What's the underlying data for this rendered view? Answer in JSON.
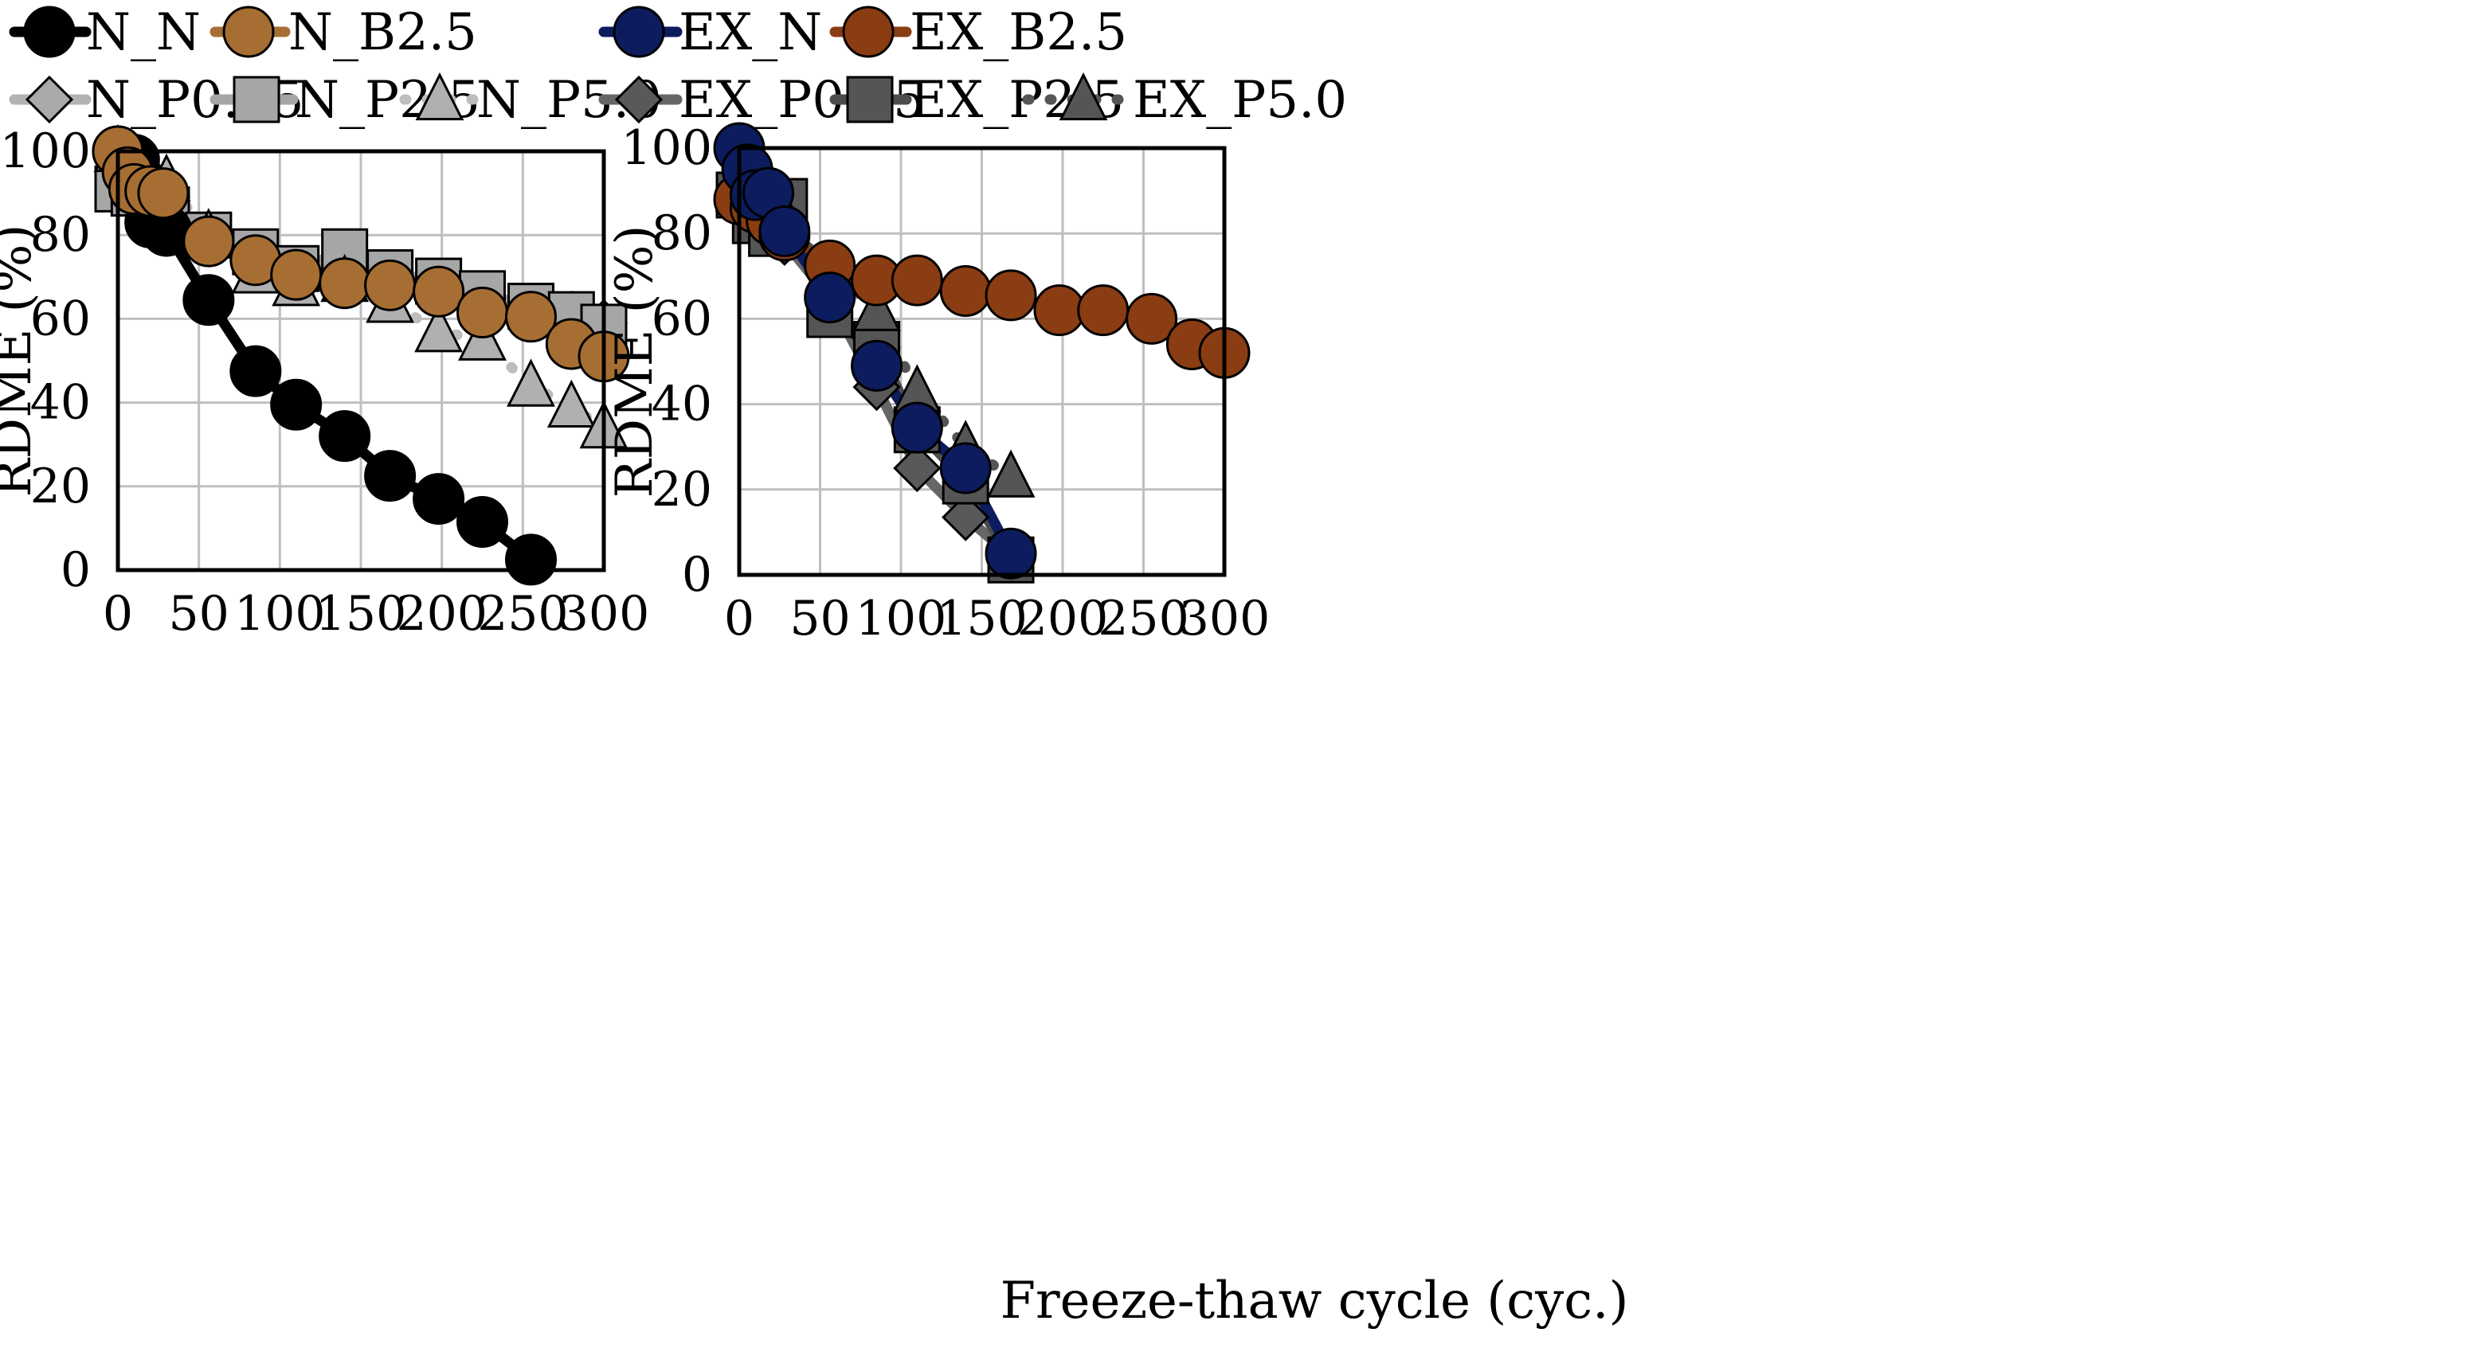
{
  "xlabel": "Freeze-thaw cycle (cyc.)",
  "legend": [
    {
      "key": "N_N",
      "label": "N_N"
    },
    {
      "key": "N_B2.5",
      "label": "N_B2.5"
    },
    {
      "key": "EX_N",
      "label": "EX_N"
    },
    {
      "key": "EX_B2.5",
      "label": "EX_B2.5"
    },
    {
      "key": "N_P0.75",
      "label": "N_P0.75"
    },
    {
      "key": "N_P2.5",
      "label": "N_P2.5"
    },
    {
      "key": "N_P5.0",
      "label": "N_P5.0"
    },
    {
      "key": "EX_P0.75",
      "label": "EX_P0.75"
    },
    {
      "key": "EX_P2.5",
      "label": "EX_P2.5"
    },
    {
      "key": "EX_P5.0",
      "label": "EX_P5.0"
    }
  ],
  "styles": {
    "N_N": {
      "line": "#000000",
      "fill": "#000000",
      "marker": "circle",
      "dash": "solid"
    },
    "N_B2.5": {
      "line": "#a76e33",
      "fill": "#a76e33",
      "marker": "circle",
      "dash": "solid"
    },
    "EX_N": {
      "line": "#0c1c5e",
      "fill": "#0c1c5e",
      "marker": "circle",
      "dash": "solid"
    },
    "EX_B2.5": {
      "line": "#8a3d12",
      "fill": "#8a3d12",
      "marker": "circle",
      "dash": "solid"
    },
    "N_P0.75": {
      "line": "#b3b3b3",
      "fill": "#aaaaaa",
      "marker": "diamond",
      "dash": "dashed"
    },
    "N_P2.5": {
      "line": "#a6a6a6",
      "fill": "#a6a6a6",
      "marker": "square",
      "dash": "solid"
    },
    "N_P5.0": {
      "line": "#bdbdbd",
      "fill": "#b0b0b0",
      "marker": "triangle",
      "dash": "dotted"
    },
    "EX_P0.75": {
      "line": "#666666",
      "fill": "#595959",
      "marker": "diamond",
      "dash": "solid"
    },
    "EX_P2.5": {
      "line": "#4d4d4d",
      "fill": "#555555",
      "marker": "square",
      "dash": "solid"
    },
    "EX_P5.0": {
      "line": "#555555",
      "fill": "#555555",
      "marker": "triangle",
      "dash": "dotted"
    }
  },
  "chart_data": [
    {
      "type": "line",
      "xlabel": "Freeze-thaw cycle (cyc.)",
      "ylabel": "RDME (%)",
      "xlim": [
        0,
        300
      ],
      "ylim": [
        0,
        100
      ],
      "xticks": [
        0,
        50,
        100,
        150,
        200,
        250,
        300
      ],
      "yticks": [
        0,
        20,
        40,
        60,
        80,
        100
      ],
      "grid": true,
      "series": [
        {
          "name": "N_P0.75",
          "x": [
            0,
            10,
            20,
            30,
            56,
            85,
            110,
            140,
            168,
            198,
            225,
            255,
            280,
            300
          ],
          "y": [
            100,
            93,
            90,
            89,
            80,
            75,
            71,
            72,
            70,
            67,
            65,
            62,
            61,
            59
          ]
        },
        {
          "name": "N_P2.5",
          "x": [
            0,
            10,
            20,
            30,
            56,
            85,
            110,
            140,
            168,
            198,
            225,
            255,
            280,
            300
          ],
          "y": [
            91,
            90,
            88,
            86,
            80,
            76,
            72,
            76,
            71,
            69,
            66,
            63,
            61,
            58
          ]
        },
        {
          "name": "N_P5.0",
          "x": [
            0,
            10,
            20,
            30,
            56,
            85,
            110,
            140,
            168,
            198,
            225,
            255,
            280,
            300
          ],
          "y": [
            100,
            97,
            95,
            93,
            80,
            71,
            68,
            69,
            64,
            57,
            55,
            44,
            39,
            34
          ]
        },
        {
          "name": "N_N",
          "x": [
            0,
            10,
            20,
            30,
            56,
            85,
            110,
            140,
            168,
            198,
            225,
            255
          ],
          "y": [
            100,
            98,
            83,
            81,
            64.5,
            47.5,
            39.5,
            32,
            22.5,
            17,
            11.5,
            2.5
          ]
        },
        {
          "name": "N_B2.5",
          "x": [
            0,
            6,
            10,
            20,
            28,
            56,
            85,
            110,
            140,
            168,
            198,
            225,
            255,
            280,
            300
          ],
          "y": [
            100,
            95,
            91,
            90.5,
            90,
            78.5,
            74,
            70.5,
            68.5,
            68,
            66.5,
            61.5,
            60.5,
            54,
            51
          ]
        }
      ]
    },
    {
      "type": "line",
      "xlabel": "Freeze-thaw cycle (cyc.)",
      "ylabel": "RDME (%)",
      "xlim": [
        0,
        300
      ],
      "ylim": [
        0,
        100
      ],
      "xticks": [
        0,
        50,
        100,
        150,
        200,
        250,
        300
      ],
      "yticks": [
        0,
        20,
        40,
        60,
        80,
        100
      ],
      "grid": true,
      "series": [
        {
          "name": "EX_P0.75",
          "x": [
            0,
            10,
            20,
            28,
            56,
            85,
            110,
            140,
            168
          ],
          "y": [
            100,
            90,
            84,
            78,
            65,
            44,
            25,
            13.5,
            4.5
          ]
        },
        {
          "name": "EX_P2.5",
          "x": [
            0,
            10,
            20,
            28,
            56,
            85,
            110,
            140,
            168
          ],
          "y": [
            89,
            83,
            80,
            87.5,
            61,
            54,
            34,
            22,
            3.5
          ]
        },
        {
          "name": "EX_P5.0",
          "x": [
            0,
            10,
            20,
            28,
            56,
            85,
            110,
            140,
            168
          ],
          "y": [
            90,
            88,
            85,
            82,
            72,
            62,
            43,
            30,
            23
          ]
        },
        {
          "name": "EX_B2.5",
          "x": [
            0,
            10,
            20,
            28,
            56,
            85,
            110,
            140,
            168,
            198,
            225,
            255,
            280,
            300
          ],
          "y": [
            88,
            86,
            83,
            79.5,
            72.5,
            69,
            69,
            66.5,
            65.5,
            62,
            62,
            60,
            54,
            52
          ]
        },
        {
          "name": "EX_N",
          "x": [
            0,
            5,
            10,
            18,
            28,
            56,
            85,
            110,
            140,
            168
          ],
          "y": [
            100,
            95,
            89,
            89.5,
            80.5,
            65,
            49,
            34.5,
            25,
            5
          ]
        }
      ]
    }
  ]
}
